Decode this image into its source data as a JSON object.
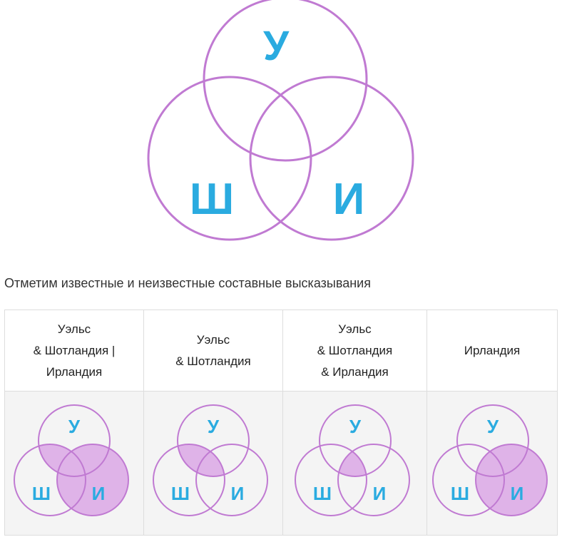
{
  "main_diagram": {
    "labels": {
      "top": "У",
      "left": "Ш",
      "right": "И"
    },
    "colors": {
      "circle_stroke": "#c07ad2",
      "letter": "#2aabe0",
      "fill": "#dfb3e8"
    }
  },
  "caption": "Отметим известные и неизвестные составные высказывания",
  "table": {
    "columns": [
      {
        "header_lines": [
          "Уэльс",
          "& Шотландия |",
          "Ирландия"
        ],
        "shaded_regions": [
          "y_sh",
          "y_sh_i",
          "i_only",
          "sh_i",
          "y_i"
        ]
      },
      {
        "header_lines": [
          "Уэльс",
          "& Шотландия"
        ],
        "shaded_regions": [
          "y_sh",
          "y_sh_i"
        ]
      },
      {
        "header_lines": [
          "Уэльс",
          "& Шотландия",
          "& Ирландия"
        ],
        "shaded_regions": [
          "y_sh_i"
        ]
      },
      {
        "header_lines": [
          "Ирландия"
        ],
        "shaded_regions": [
          "i_only",
          "sh_i",
          "y_i",
          "y_sh_i"
        ]
      }
    ]
  }
}
